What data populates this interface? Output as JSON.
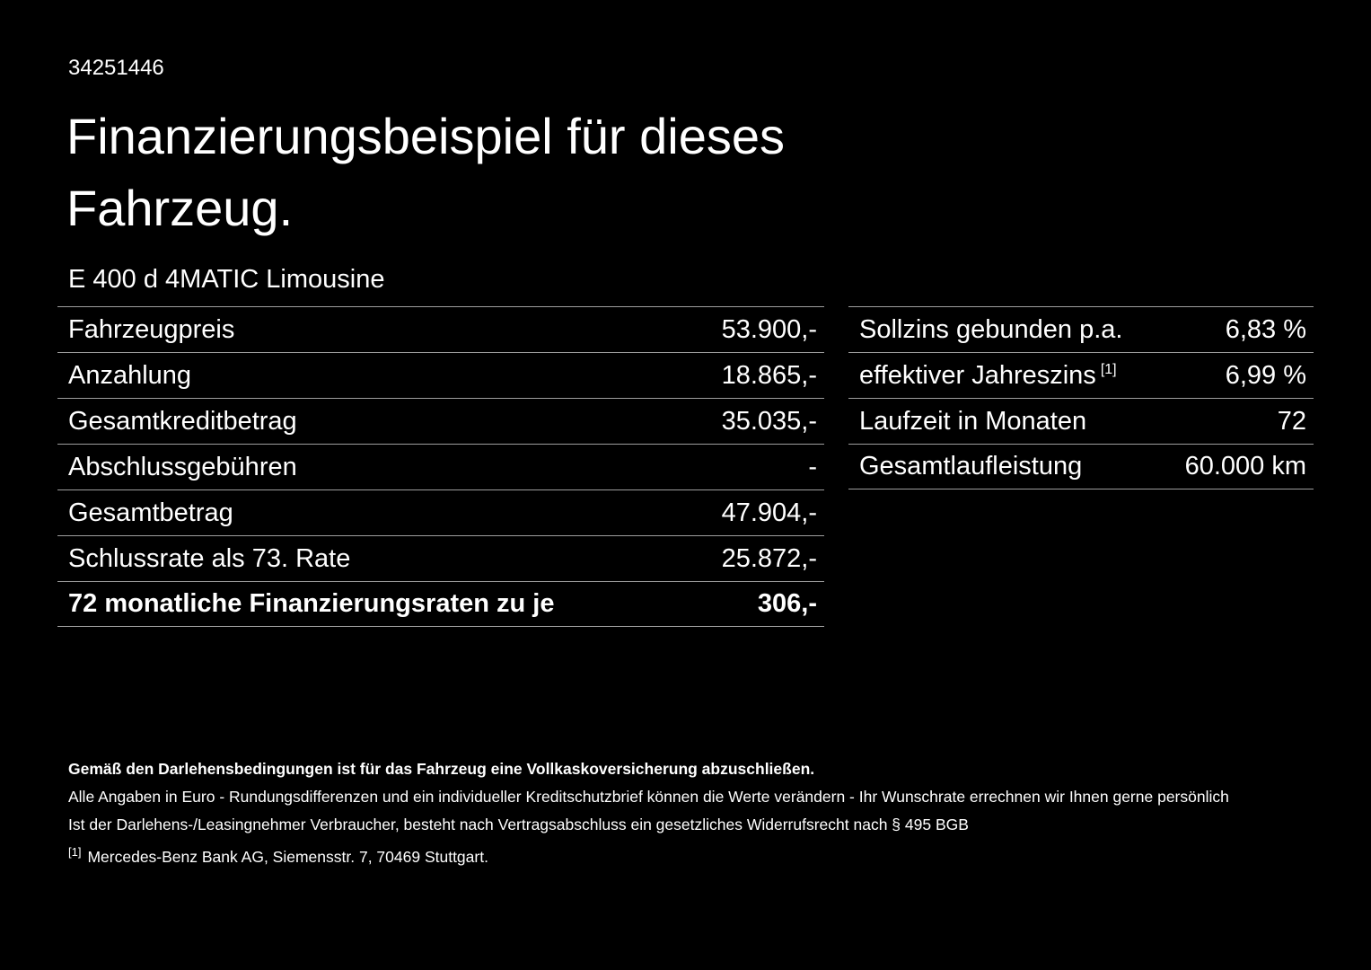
{
  "page": {
    "doc_id": "34251446",
    "title": "Finanzierungsbeispiel für dieses Fahrzeug.",
    "vehicle_model": "E 400 d 4MATIC Limousine"
  },
  "financing_table": {
    "rows": [
      {
        "label": "Fahrzeugpreis",
        "value": "53.900,-"
      },
      {
        "label": "Anzahlung",
        "value": "18.865,-"
      },
      {
        "label": "Gesamtkreditbetrag",
        "value": "35.035,-"
      },
      {
        "label": "Abschlussgebühren",
        "value": "-"
      },
      {
        "label": "Gesamtbetrag",
        "value": "47.904,-"
      },
      {
        "label": "Schlussrate als 73. Rate",
        "value": "25.872,-"
      },
      {
        "label": "72 monatliche Finanzierungsraten zu je",
        "value": "306,-"
      }
    ]
  },
  "conditions_table": {
    "rows": [
      {
        "label": "Sollzins gebunden p.a.",
        "value": "6,83 %"
      },
      {
        "label": "effektiver Jahreszins",
        "footnote_marker": "[1]",
        "value": "6,99 %"
      },
      {
        "label": "Laufzeit in Monaten",
        "value": "72"
      },
      {
        "label": "Gesamtlaufleistung",
        "value": "60.000 km"
      }
    ]
  },
  "footnotes": {
    "insurance_note": "Gemäß den Darlehensbedingungen ist für das Fahrzeug eine Vollkaskoversicherung abzuschließen.",
    "rounding_note": "Alle Angaben in Euro - Rundungsdifferenzen und ein individueller Kreditschutzbrief können die Werte verändern - Ihr Wunschrate errechnen wir Ihnen gerne persönlich",
    "withdrawal_note": "Ist der Darlehens-/Leasingnehmer Verbraucher, besteht nach Vertragsabschluss ein gesetzliches Widerrufsrecht nach § 495 BGB",
    "reference_marker": "[1]",
    "reference_text": "Mercedes-Benz Bank AG, Siemensstr. 7, 70469 Stuttgart."
  },
  "colors": {
    "background": "#000000",
    "text": "#ffffff",
    "divider": "#9e9e9e"
  }
}
